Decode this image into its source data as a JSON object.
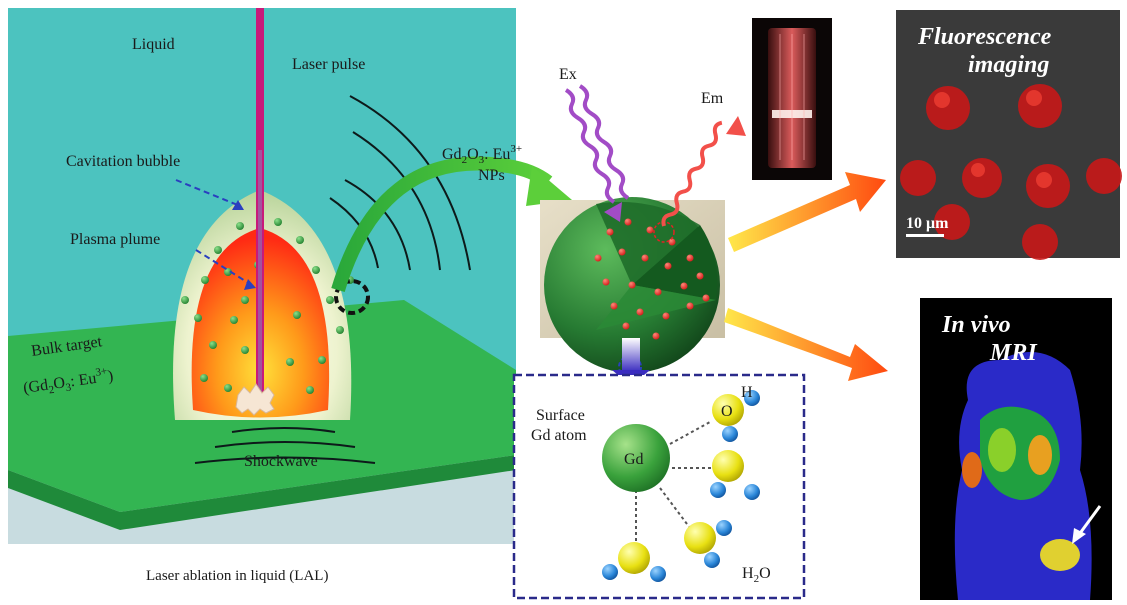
{
  "lal_panel": {
    "liquid": "Liquid",
    "laser_pulse": "Laser pulse",
    "cavitation_bubble": "Cavitation bubble",
    "plasma_plume": "Plasma plume",
    "bulk_target_line1": "Bulk target",
    "bulk_target_line2_prefix": "(Gd",
    "bulk_target_sub": "2",
    "bulk_target_mid": "O",
    "bulk_target_sub2": "3",
    "bulk_target_suffix": ": Eu",
    "bulk_target_sup": "3+",
    "bulk_target_close": ")",
    "shockwave": "Shockwave",
    "caption": "Laser ablation in liquid (LAL)"
  },
  "nanoparticle": {
    "label_prefix": "Gd",
    "label_sub": "2",
    "label_mid": "O",
    "label_sub2": "3",
    "label_suffix": ": Eu",
    "label_sup": "3+",
    "label_line2": "NPs",
    "ex": "Ex",
    "em": "Em"
  },
  "surface_box": {
    "surface_line1": "Surface",
    "surface_line2": "Gd atom",
    "gd": "Gd",
    "o": "O",
    "h": "H",
    "water_prefix": "H",
    "water_sub": "2",
    "water_suffix": "O"
  },
  "fluorescence_photo": {
    "title_line1": "Fluorescence",
    "title_line2": "imaging",
    "scale": "10 μm"
  },
  "mri_photo": {
    "title_line1": "In vivo",
    "title_line2": "MRI"
  },
  "colors": {
    "liquid": "#4cc3bf",
    "target": "#2fae4c",
    "plume_center": "#ffd21a",
    "plume_edge": "#ff3a1a",
    "laser": "#c81a7a",
    "np_green": "#2d8a3a",
    "arrow_orange": "#ff7a1a"
  }
}
